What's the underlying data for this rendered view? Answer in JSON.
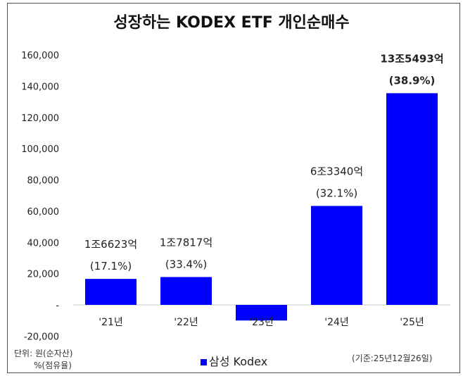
{
  "chart_data": {
    "type": "bar",
    "title": "성장하는 KODEX ETF 개인순매수",
    "categories": [
      "'21년",
      "'22년",
      "'23년",
      "'24년",
      "'25년"
    ],
    "series": [
      {
        "name": "삼성 Kodex",
        "values": [
          16623,
          17817,
          -10000,
          63340,
          135493
        ],
        "color": "#0000FF"
      }
    ],
    "data_labels": [
      {
        "amount": "1조6623억",
        "share": "(17.1%)",
        "bold": false
      },
      {
        "amount": "1조7817억",
        "share": "(33.4%)",
        "bold": false
      },
      null,
      {
        "amount": "6조3340억",
        "share": "(32.1%)",
        "bold": false
      },
      {
        "amount": "13조5493억",
        "share": "(38.9%)",
        "bold": true
      }
    ],
    "yticks": [
      "-20,000",
      "-",
      "20,000",
      "40,000",
      "60,000",
      "80,000",
      "100,000",
      "120,000",
      "140,000",
      "160,000"
    ],
    "ytick_values": [
      -20000,
      0,
      20000,
      40000,
      60000,
      80000,
      100000,
      120000,
      140000,
      160000
    ],
    "ylim": [
      -20000,
      160000
    ],
    "grid": false,
    "legend": "bottom"
  },
  "footer": {
    "unit_line1": "단위: 원(순자산)",
    "unit_line2": "%(점유율)",
    "legend_label": "삼성 Kodex",
    "basis_date": "(기준:25년12월26일)"
  }
}
